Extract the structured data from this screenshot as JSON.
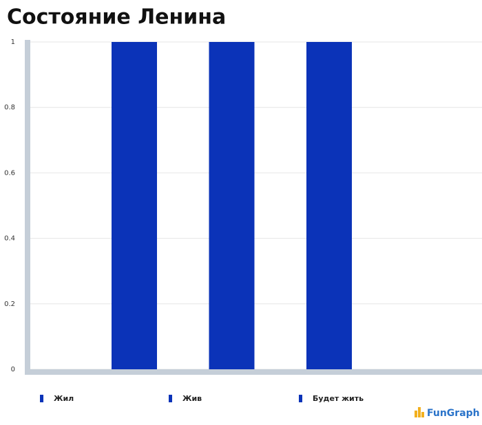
{
  "chart_data": {
    "type": "bar",
    "title": "Состояние Ленина",
    "categories": [
      "Жил",
      "Жив",
      "Будет жить"
    ],
    "values": [
      1,
      1,
      1
    ],
    "color": "#0b33b8",
    "ylim": [
      0,
      1
    ],
    "yticks": [
      0,
      0.2,
      0.4,
      0.6,
      0.8,
      1
    ],
    "grid": true,
    "legend": "bottom",
    "watermark": "FunGraph"
  }
}
